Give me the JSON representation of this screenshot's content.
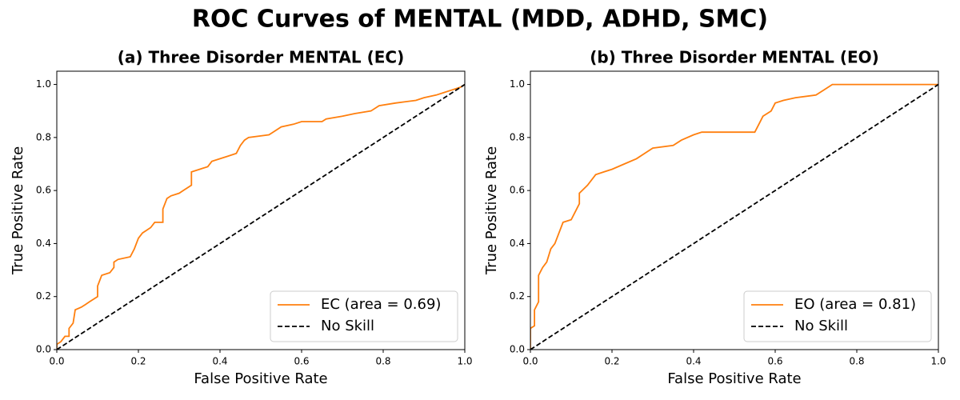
{
  "title": "ROC Curves of MENTAL (MDD, ADHD, SMC)",
  "chart_data": [
    {
      "type": "line",
      "title": "(a) Three Disorder MENTAL (EC)",
      "xlabel": "False Positive Rate",
      "ylabel": "True Positive Rate",
      "xlim": [
        0,
        1
      ],
      "ylim": [
        0,
        1.05
      ],
      "xticks": [
        {
          "value": 0,
          "label": "0.0"
        },
        {
          "value": 0.2,
          "label": "0.2"
        },
        {
          "value": 0.4,
          "label": "0.4"
        },
        {
          "value": 0.6,
          "label": "0.6"
        },
        {
          "value": 0.8,
          "label": "0.8"
        },
        {
          "value": 1,
          "label": "1.0"
        }
      ],
      "yticks": [
        {
          "value": 0,
          "label": "0.0"
        },
        {
          "value": 0.2,
          "label": "0.2"
        },
        {
          "value": 0.4,
          "label": "0.4"
        },
        {
          "value": 0.6,
          "label": "0.6"
        },
        {
          "value": 0.8,
          "label": "0.8"
        },
        {
          "value": 1,
          "label": "1.0"
        }
      ],
      "legend": "lower right",
      "series": [
        {
          "name": "EC (area = 0.69)",
          "color": "#ff7f0e",
          "linestyle": "solid",
          "x": [
            0,
            0,
            0.01,
            0.02,
            0.03,
            0.03,
            0.04,
            0.045,
            0.06,
            0.07,
            0.08,
            0.09,
            0.1,
            0.1,
            0.11,
            0.13,
            0.14,
            0.14,
            0.15,
            0.18,
            0.19,
            0.2,
            0.21,
            0.22,
            0.23,
            0.24,
            0.26,
            0.26,
            0.27,
            0.28,
            0.3,
            0.31,
            0.33,
            0.33,
            0.35,
            0.37,
            0.38,
            0.4,
            0.42,
            0.44,
            0.45,
            0.46,
            0.47,
            0.52,
            0.53,
            0.55,
            0.58,
            0.6,
            0.65,
            0.66,
            0.7,
            0.73,
            0.77,
            0.79,
            0.83,
            0.88,
            0.9,
            0.93,
            0.95,
            0.97,
            0.99,
            1
          ],
          "values": [
            0,
            0.02,
            0.03,
            0.05,
            0.05,
            0.08,
            0.1,
            0.15,
            0.16,
            0.17,
            0.18,
            0.19,
            0.2,
            0.24,
            0.28,
            0.29,
            0.31,
            0.33,
            0.34,
            0.35,
            0.38,
            0.42,
            0.44,
            0.45,
            0.46,
            0.48,
            0.48,
            0.53,
            0.57,
            0.58,
            0.59,
            0.6,
            0.62,
            0.67,
            0.68,
            0.69,
            0.71,
            0.72,
            0.73,
            0.74,
            0.77,
            0.79,
            0.8,
            0.81,
            0.82,
            0.84,
            0.85,
            0.86,
            0.86,
            0.87,
            0.88,
            0.89,
            0.9,
            0.92,
            0.93,
            0.94,
            0.95,
            0.96,
            0.97,
            0.98,
            0.99,
            1
          ]
        },
        {
          "name": "No Skill",
          "color": "#000000",
          "linestyle": "dashed",
          "x": [
            0,
            1
          ],
          "values": [
            0,
            1
          ]
        }
      ]
    },
    {
      "type": "line",
      "title": "(b) Three Disorder MENTAL (EO)",
      "xlabel": "False Positive Rate",
      "ylabel": "True Positive Rate",
      "xlim": [
        0,
        1
      ],
      "ylim": [
        0,
        1.05
      ],
      "xticks": [
        {
          "value": 0,
          "label": "0.0"
        },
        {
          "value": 0.2,
          "label": "0.2"
        },
        {
          "value": 0.4,
          "label": "0.4"
        },
        {
          "value": 0.6,
          "label": "0.6"
        },
        {
          "value": 0.8,
          "label": "0.8"
        },
        {
          "value": 1,
          "label": "1.0"
        }
      ],
      "yticks": [
        {
          "value": 0,
          "label": "0.0"
        },
        {
          "value": 0.2,
          "label": "0.2"
        },
        {
          "value": 0.4,
          "label": "0.4"
        },
        {
          "value": 0.6,
          "label": "0.6"
        },
        {
          "value": 0.8,
          "label": "0.8"
        },
        {
          "value": 1,
          "label": "1.0"
        }
      ],
      "legend": "lower right",
      "series": [
        {
          "name": "EO (area = 0.81)",
          "color": "#ff7f0e",
          "linestyle": "solid",
          "x": [
            0,
            0,
            0.01,
            0.01,
            0.02,
            0.02,
            0.03,
            0.04,
            0.05,
            0.06,
            0.07,
            0.08,
            0.1,
            0.11,
            0.12,
            0.12,
            0.14,
            0.16,
            0.18,
            0.2,
            0.23,
            0.26,
            0.28,
            0.3,
            0.35,
            0.37,
            0.4,
            0.42,
            0.55,
            0.56,
            0.57,
            0.59,
            0.6,
            0.62,
            0.65,
            0.7,
            0.72,
            0.74,
            1
          ],
          "values": [
            0,
            0.08,
            0.09,
            0.15,
            0.18,
            0.28,
            0.31,
            0.33,
            0.38,
            0.4,
            0.44,
            0.48,
            0.49,
            0.52,
            0.55,
            0.59,
            0.62,
            0.66,
            0.67,
            0.68,
            0.7,
            0.72,
            0.74,
            0.76,
            0.77,
            0.79,
            0.81,
            0.82,
            0.82,
            0.85,
            0.88,
            0.9,
            0.93,
            0.94,
            0.95,
            0.96,
            0.98,
            1,
            1
          ]
        },
        {
          "name": "No Skill",
          "color": "#000000",
          "linestyle": "dashed",
          "x": [
            0,
            1
          ],
          "values": [
            0,
            1
          ]
        }
      ]
    }
  ]
}
